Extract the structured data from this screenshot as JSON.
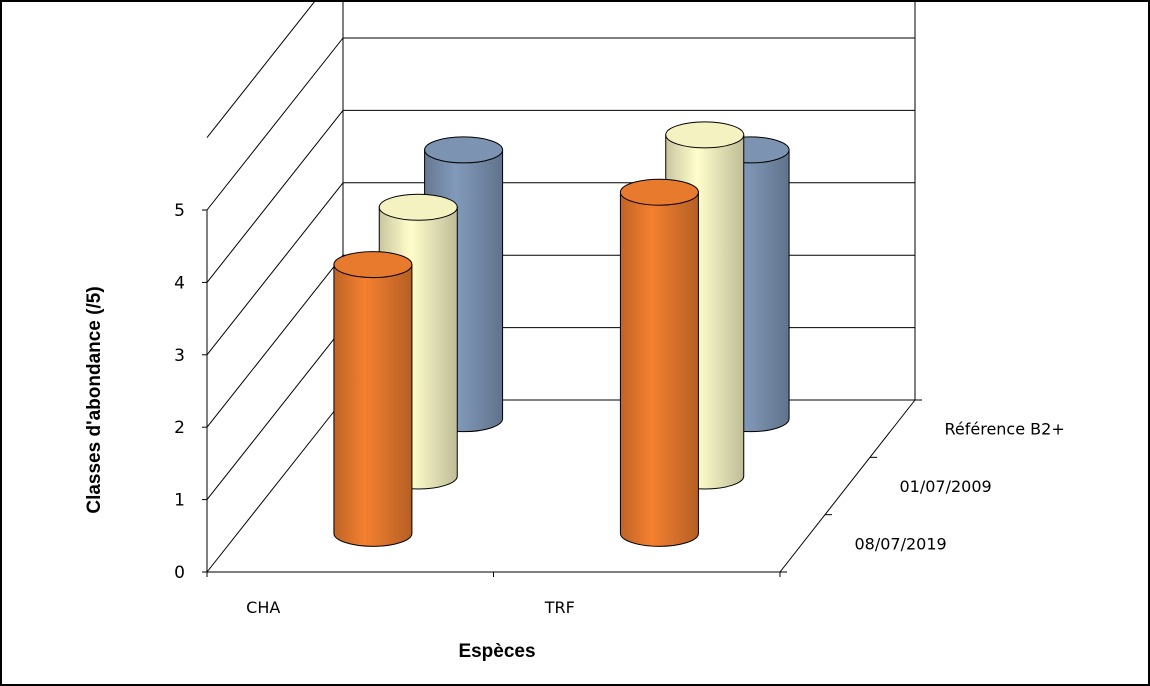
{
  "chart_data": {
    "type": "bar",
    "style": "3d-cylinder",
    "categories": [
      "CHA",
      "TRF"
    ],
    "series": [
      {
        "name": "08/07/2019",
        "values": [
          4,
          5
        ],
        "color": "#e87a2e"
      },
      {
        "name": "01/07/2009",
        "values": [
          4,
          5
        ],
        "color": "#f5f2c2"
      },
      {
        "name": "Référence B2+",
        "values": [
          4,
          4
        ],
        "color": "#7c93b2"
      }
    ],
    "y_ticks": [
      "0",
      "1",
      "2",
      "3",
      "4",
      "5"
    ],
    "ylim": [
      0,
      5
    ],
    "xlabel": "Espèces",
    "ylabel": "Classes d'abondance (/5)",
    "grid": true
  }
}
